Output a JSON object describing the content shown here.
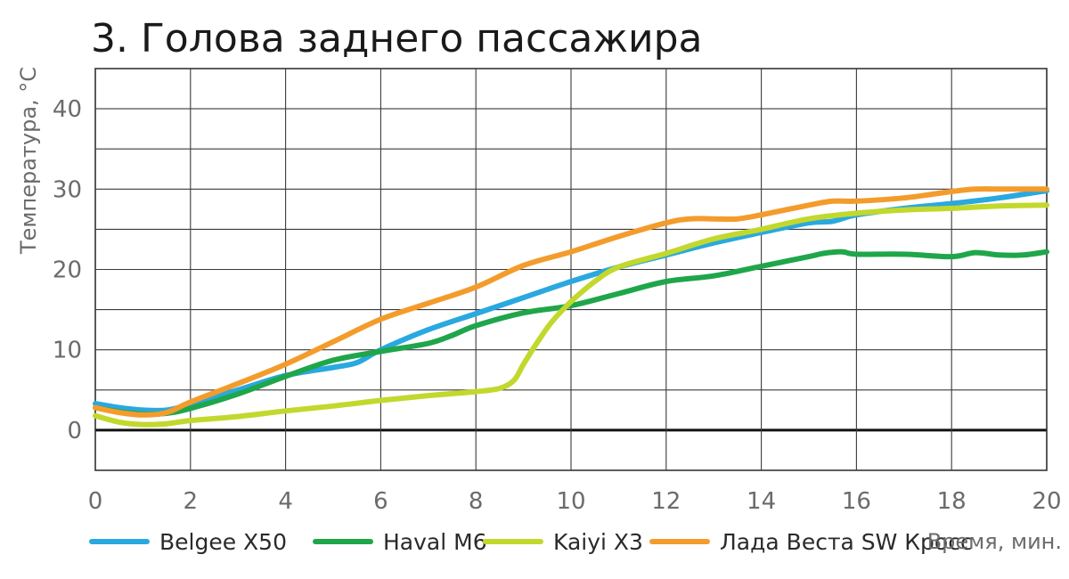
{
  "chart_data": {
    "type": "line",
    "title": "3. Голова заднего пассажира",
    "xlabel": "Время, мин.",
    "ylabel": "Температура, °С",
    "xlim": [
      0,
      20
    ],
    "ylim": [
      -5,
      45
    ],
    "x_ticks": [
      0,
      2,
      4,
      6,
      8,
      10,
      12,
      14,
      16,
      18,
      20
    ],
    "y_ticks": [
      0,
      10,
      20,
      30,
      40
    ],
    "grid": true,
    "legend_position": "bottom",
    "series": [
      {
        "name": "Belgee X50",
        "color": "#2aa8e0",
        "x": [
          0,
          0.5,
          1,
          1.5,
          2,
          3,
          4,
          5,
          5.5,
          6,
          7,
          8,
          9,
          10,
          11,
          12,
          13,
          14,
          15,
          15.5,
          16,
          17,
          18,
          19,
          20
        ],
        "y": [
          3.3,
          2.8,
          2.5,
          2.5,
          3.2,
          5.0,
          6.8,
          7.8,
          8.4,
          10.0,
          12.5,
          14.5,
          16.5,
          18.5,
          20.3,
          21.8,
          23.3,
          24.6,
          25.8,
          26.0,
          26.8,
          27.6,
          28.2,
          28.9,
          29.8
        ]
      },
      {
        "name": "Haval M6",
        "color": "#1fa64a",
        "x": [
          0,
          0.5,
          1,
          1.5,
          2,
          3,
          4,
          5,
          6,
          7,
          7.5,
          8,
          9,
          10,
          11,
          12,
          13,
          14,
          15,
          15.3,
          15.7,
          16,
          17,
          18,
          18.5,
          19,
          19.5,
          20
        ],
        "y": [
          2.8,
          2.3,
          2.0,
          2.1,
          2.7,
          4.5,
          6.7,
          8.7,
          9.8,
          10.8,
          11.8,
          13.0,
          14.6,
          15.5,
          17.0,
          18.5,
          19.2,
          20.4,
          21.6,
          22.0,
          22.2,
          21.9,
          21.9,
          21.6,
          22.1,
          21.8,
          21.8,
          22.2
        ]
      },
      {
        "name": "Kaiyi X3",
        "color": "#c2d82c",
        "x": [
          0,
          0.5,
          1,
          1.5,
          2,
          3,
          4,
          5,
          6,
          7,
          8,
          8.5,
          8.8,
          9,
          9.3,
          9.6,
          10,
          10.5,
          11,
          12,
          13,
          14,
          15,
          16,
          17,
          18,
          19,
          20
        ],
        "y": [
          1.8,
          1.0,
          0.7,
          0.8,
          1.2,
          1.7,
          2.4,
          3.0,
          3.7,
          4.3,
          4.8,
          5.2,
          6.2,
          8.2,
          11.0,
          13.5,
          16.0,
          18.5,
          20.3,
          22.0,
          23.8,
          25.0,
          26.3,
          27.0,
          27.4,
          27.6,
          27.9,
          28.0
        ]
      },
      {
        "name": "Лада Веста SW Кросс",
        "color": "#f39c2c",
        "x": [
          0,
          0.5,
          1,
          1.5,
          2,
          3,
          4,
          5,
          6,
          7,
          8,
          9,
          10,
          11,
          12,
          12.5,
          13,
          13.5,
          14,
          15,
          15.5,
          16,
          17,
          18,
          18.5,
          19,
          20
        ],
        "y": [
          2.8,
          2.2,
          1.9,
          2.2,
          3.5,
          5.8,
          8.2,
          11.0,
          13.8,
          15.8,
          17.8,
          20.5,
          22.2,
          24.1,
          25.8,
          26.3,
          26.3,
          26.3,
          26.8,
          28.0,
          28.5,
          28.5,
          28.9,
          29.7,
          30.0,
          30.0,
          30.0
        ]
      }
    ]
  }
}
